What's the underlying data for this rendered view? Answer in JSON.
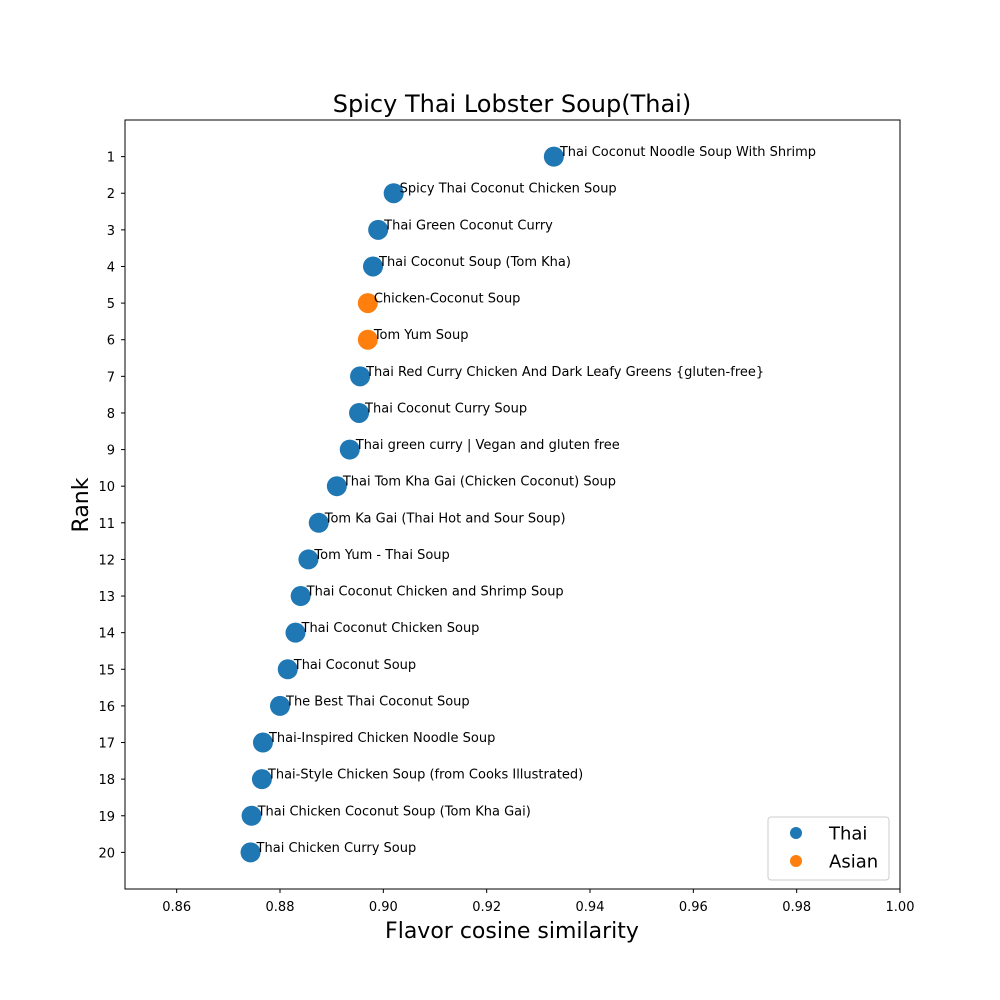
{
  "chart_data": {
    "type": "scatter",
    "title": "Spicy Thai Lobster Soup(Thai)",
    "xlabel": "Flavor cosine similarity",
    "ylabel": "Rank",
    "xlim": [
      0.85,
      1.0
    ],
    "ylim": [
      21,
      0
    ],
    "x_ticks": [
      "0.86",
      "0.88",
      "0.90",
      "0.92",
      "0.94",
      "0.96",
      "0.98",
      "1.00"
    ],
    "y_ticks": [
      "1",
      "2",
      "3",
      "4",
      "5",
      "6",
      "7",
      "8",
      "9",
      "10",
      "11",
      "12",
      "13",
      "14",
      "15",
      "16",
      "17",
      "18",
      "19",
      "20"
    ],
    "grid": false,
    "legend_position": "lower-right",
    "series": [
      {
        "name": "Thai",
        "color": "#1f77b4"
      },
      {
        "name": "Asian",
        "color": "#ff7f0e"
      }
    ],
    "points": [
      {
        "rank": 1,
        "x": 0.933,
        "label": "Thai Coconut Noodle Soup With Shrimp",
        "series": "Thai"
      },
      {
        "rank": 2,
        "x": 0.902,
        "label": "Spicy Thai Coconut Chicken Soup",
        "series": "Thai"
      },
      {
        "rank": 3,
        "x": 0.899,
        "label": "Thai Green Coconut Curry",
        "series": "Thai"
      },
      {
        "rank": 4,
        "x": 0.898,
        "label": "Thai Coconut Soup (Tom Kha)",
        "series": "Thai"
      },
      {
        "rank": 5,
        "x": 0.897,
        "label": "Chicken-Coconut Soup",
        "series": "Asian"
      },
      {
        "rank": 6,
        "x": 0.897,
        "label": "Tom Yum Soup",
        "series": "Asian"
      },
      {
        "rank": 7,
        "x": 0.8955,
        "label": "Thai Red Curry Chicken And Dark Leafy Greens {gluten-free}",
        "series": "Thai"
      },
      {
        "rank": 8,
        "x": 0.8953,
        "label": "Thai Coconut Curry Soup",
        "series": "Thai"
      },
      {
        "rank": 9,
        "x": 0.8935,
        "label": "Thai green curry | Vegan and gluten free",
        "series": "Thai"
      },
      {
        "rank": 10,
        "x": 0.891,
        "label": "Thai Tom Kha Gai (Chicken Coconut) Soup",
        "series": "Thai"
      },
      {
        "rank": 11,
        "x": 0.8875,
        "label": "Tom Ka Gai (Thai Hot and Sour Soup)",
        "series": "Thai"
      },
      {
        "rank": 12,
        "x": 0.8855,
        "label": "Tom Yum - Thai Soup",
        "series": "Thai"
      },
      {
        "rank": 13,
        "x": 0.884,
        "label": "Thai Coconut Chicken and Shrimp Soup",
        "series": "Thai"
      },
      {
        "rank": 14,
        "x": 0.883,
        "label": "Thai Coconut Chicken Soup",
        "series": "Thai"
      },
      {
        "rank": 15,
        "x": 0.8815,
        "label": "Thai Coconut Soup",
        "series": "Thai"
      },
      {
        "rank": 16,
        "x": 0.88,
        "label": "The Best Thai Coconut Soup",
        "series": "Thai"
      },
      {
        "rank": 17,
        "x": 0.8767,
        "label": "Thai-Inspired Chicken Noodle Soup",
        "series": "Thai"
      },
      {
        "rank": 18,
        "x": 0.8765,
        "label": "Thai-Style Chicken Soup (from Cooks Illustrated)",
        "series": "Thai"
      },
      {
        "rank": 19,
        "x": 0.8745,
        "label": "Thai Chicken Coconut Soup (Tom Kha Gai)",
        "series": "Thai"
      },
      {
        "rank": 20,
        "x": 0.8743,
        "label": "Thai Chicken Curry Soup",
        "series": "Thai"
      }
    ]
  }
}
